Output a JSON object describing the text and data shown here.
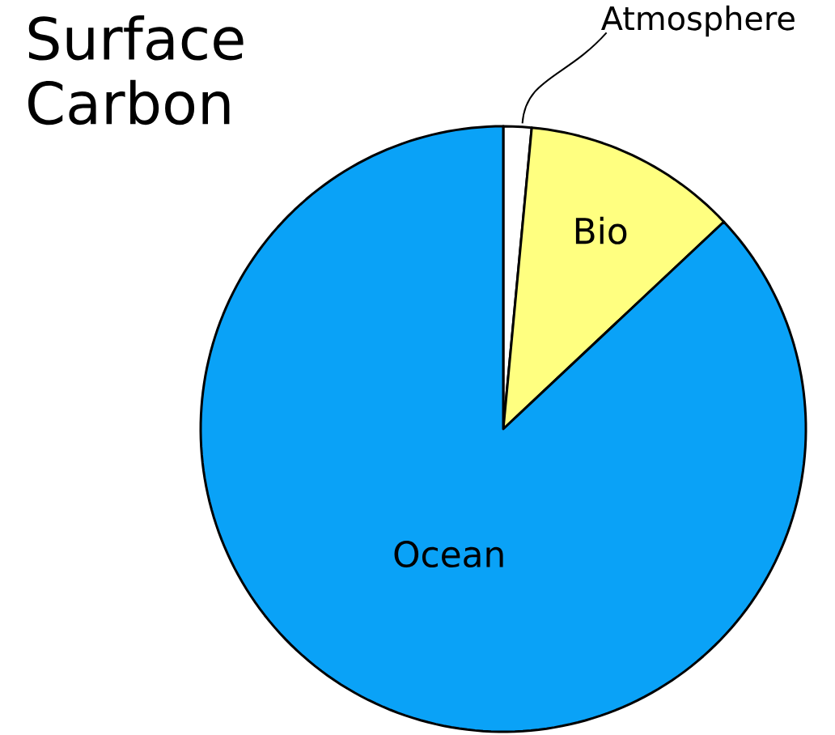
{
  "chart_data": {
    "type": "pie",
    "title": "Surface Carbon",
    "categories": [
      "Atmosphere",
      "Bio",
      "Ocean"
    ],
    "values": [
      1.5,
      11.5,
      87
    ],
    "colors": [
      "#ffffff",
      "#ffff80",
      "#0aa2f7"
    ]
  }
}
